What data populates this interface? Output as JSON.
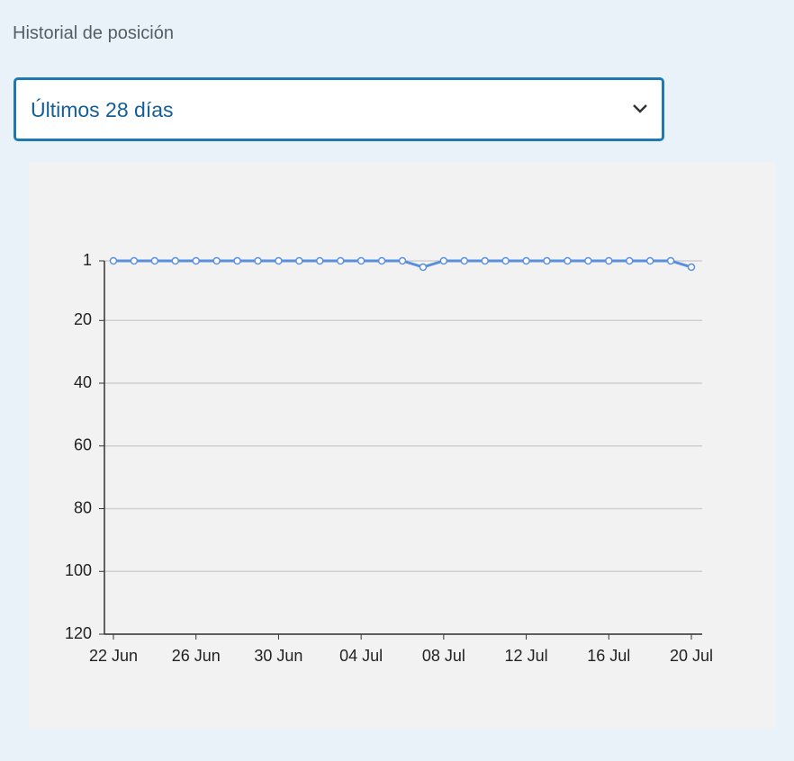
{
  "header": {
    "title": "Historial de posición"
  },
  "select": {
    "label": "Últimos 28 días"
  },
  "chart_data": {
    "type": "line",
    "categories": [
      "22 Jun",
      null,
      null,
      null,
      "26 Jun",
      null,
      null,
      null,
      "30 Jun",
      null,
      null,
      null,
      "04 Jul",
      null,
      null,
      null,
      "08 Jul",
      null,
      null,
      null,
      "12 Jul",
      null,
      null,
      null,
      "16 Jul",
      null,
      null,
      null,
      "20 Jul"
    ],
    "series": [
      {
        "color": "#5a8fdb",
        "values": [
          1,
          1,
          1,
          1,
          1,
          1,
          1,
          1,
          1,
          1,
          1,
          1,
          1,
          1,
          1,
          3,
          1,
          1,
          1,
          1,
          1,
          1,
          1,
          1,
          1,
          1,
          1,
          1,
          3
        ]
      }
    ],
    "ylim": [
      1,
      120
    ],
    "yticks": [
      1,
      20,
      40,
      60,
      80,
      100,
      120
    ],
    "inverted": true,
    "grid": true
  }
}
